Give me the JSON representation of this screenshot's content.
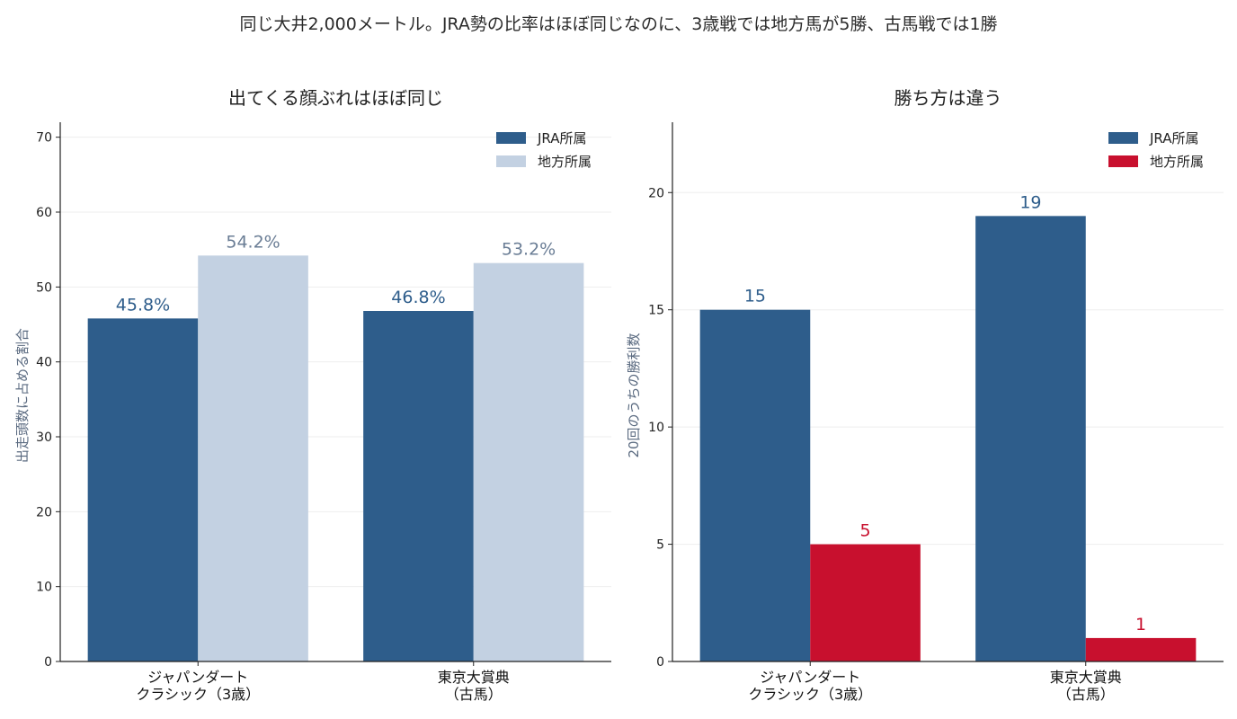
{
  "suptitle": "同じ大井2,000メートル。JRA勢の比率はほぼ同じなのに、3歳戦では地方馬が5勝、古馬戦では1勝",
  "colors": {
    "jra": "#2e5d8b",
    "local_share": "#c3d1e2",
    "local_wins": "#c8102e",
    "share_label_local": "#6a7d95"
  },
  "chart_data": [
    {
      "type": "bar",
      "title": "出てくる顔ぶれはほぼ同じ",
      "ylabel": "出走頭数に占める割合",
      "xlabel": "",
      "ylim": [
        0,
        72
      ],
      "yticks": [
        0,
        10,
        20,
        30,
        40,
        50,
        60,
        70
      ],
      "grid": true,
      "legend_position": "top-right",
      "categories": [
        [
          "ジャパンダート",
          "クラシック（3歳）"
        ],
        [
          "東京大賞典",
          "（古馬）"
        ]
      ],
      "series": [
        {
          "name": "JRA所属",
          "values": [
            45.8,
            46.8
          ],
          "labels": [
            "45.8%",
            "46.8%"
          ]
        },
        {
          "name": "地方所属",
          "values": [
            54.2,
            53.2
          ],
          "labels": [
            "54.2%",
            "53.2%"
          ]
        }
      ]
    },
    {
      "type": "bar",
      "title": "勝ち方は違う",
      "ylabel": "20回のうちの勝利数",
      "xlabel": "",
      "ylim": [
        0,
        23
      ],
      "yticks": [
        0,
        5,
        10,
        15,
        20
      ],
      "grid": true,
      "legend_position": "top-right",
      "categories": [
        [
          "ジャパンダート",
          "クラシック（3歳）"
        ],
        [
          "東京大賞典",
          "（古馬）"
        ]
      ],
      "series": [
        {
          "name": "JRA所属",
          "values": [
            15,
            19
          ],
          "labels": [
            "15",
            "19"
          ]
        },
        {
          "name": "地方所属",
          "values": [
            5,
            1
          ],
          "labels": [
            "5",
            "1"
          ]
        }
      ]
    }
  ]
}
